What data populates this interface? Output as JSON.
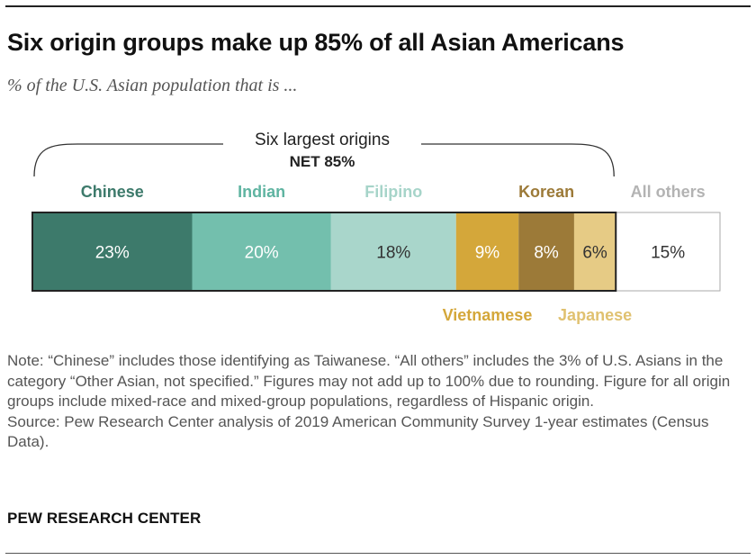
{
  "header": {
    "title": "Six origin groups make up 85% of all Asian Americans",
    "subtitle": "% of the U.S. Asian population that is ..."
  },
  "chart_data": {
    "type": "bar",
    "orientation": "horizontal-stacked",
    "bracket": {
      "label": "Six largest origins",
      "net_label": "NET 85%"
    },
    "segments": [
      {
        "label": "Chinese",
        "value": 23,
        "value_label": "23%",
        "fill": "#3d7a6b",
        "label_color": "#3d7a6b",
        "value_color": "#ffffff",
        "label_position": "above"
      },
      {
        "label": "Indian",
        "value": 20,
        "value_label": "20%",
        "fill": "#73bfad",
        "label_color": "#5fb4a1",
        "value_color": "#ffffff",
        "label_position": "above"
      },
      {
        "label": "Filipino",
        "value": 18,
        "value_label": "18%",
        "fill": "#a9d6cb",
        "label_color": "#a6d4c9",
        "value_color": "#333333",
        "label_position": "above"
      },
      {
        "label": "Vietnamese",
        "value": 9,
        "value_label": "9%",
        "fill": "#d4a73a",
        "label_color": "#d4a73a",
        "value_color": "#ffffff",
        "label_position": "below"
      },
      {
        "label": "Korean",
        "value": 8,
        "value_label": "8%",
        "fill": "#9c7a38",
        "label_color": "#9c7a38",
        "value_color": "#ffffff",
        "label_position": "above"
      },
      {
        "label": "Japanese",
        "value": 6,
        "value_label": "6%",
        "fill": "#e6cb85",
        "label_color": "#e0c170",
        "value_color": "#333333",
        "label_position": "below"
      },
      {
        "label": "All others",
        "value": 15,
        "value_label": "15%",
        "fill": "#ffffff",
        "label_color": "#b3b3b3",
        "value_color": "#333333",
        "label_position": "above"
      }
    ]
  },
  "notes": [
    "Note: “Chinese” includes those identifying as Taiwanese. “All others” includes the 3% of U.S. Asians in the category “Other Asian, not specified.” Figures may not add up to 100% due to rounding. Figure for all origin groups include mixed-race and mixed-group populations, regardless of Hispanic origin.",
    "Source: Pew Research Center analysis of 2019 American Community Survey 1-year estimates (Census Data)."
  ],
  "brand": "PEW RESEARCH CENTER"
}
